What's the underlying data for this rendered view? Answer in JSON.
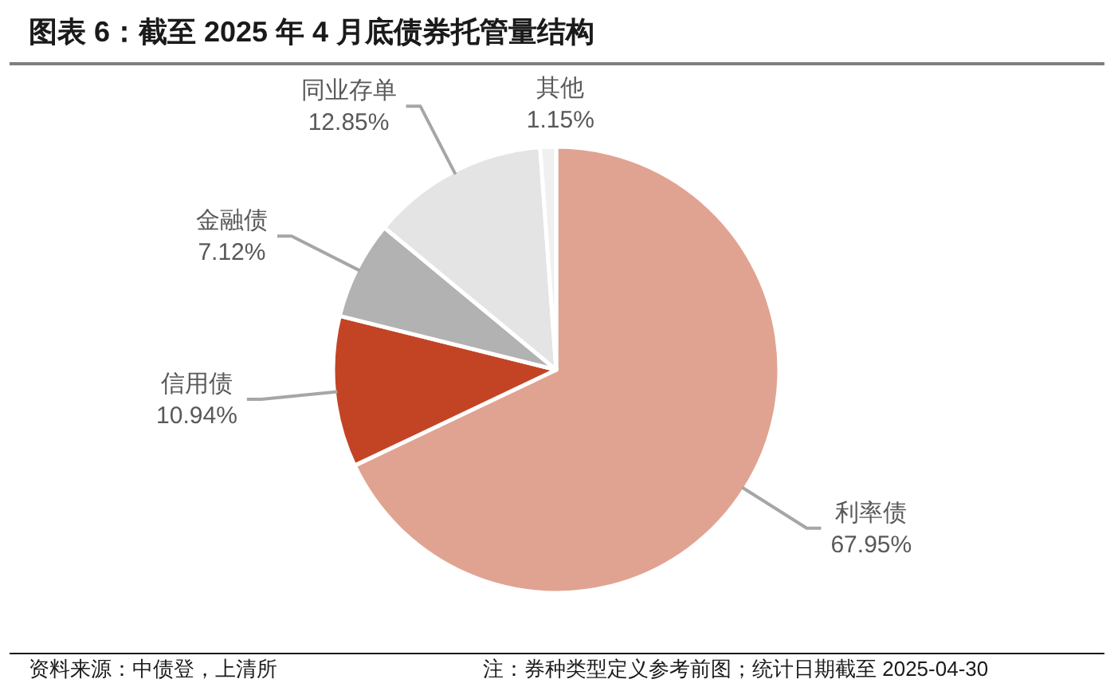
{
  "chart_data": {
    "type": "pie",
    "title": "图表 6：截至 2025 年 4 月底债券托管量结构",
    "categories": [
      "利率债",
      "信用债",
      "金融债",
      "同业存单",
      "其他"
    ],
    "values": [
      67.95,
      10.94,
      7.12,
      12.85,
      1.15
    ],
    "colors": [
      "#e1a391",
      "#c34424",
      "#b2b2b2",
      "#e4e4e4",
      "#f0f0f0"
    ],
    "value_labels": [
      "67.95%",
      "10.94%",
      "7.12%",
      "12.85%",
      "1.15%"
    ],
    "annotations": [
      "资料来源：中债登，上清所",
      "注：券种类型定义参考前图；统计日期截至 2025-04-30"
    ]
  }
}
